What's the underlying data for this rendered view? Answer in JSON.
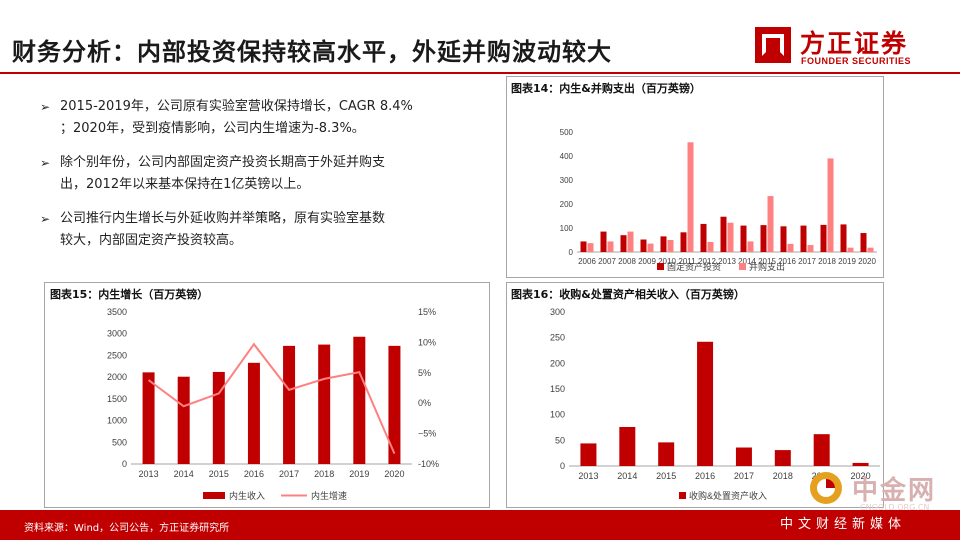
{
  "header": {
    "title": "财务分析：内部投资保持较高水平，外延并购波动较大",
    "brand_cn": "方正证券",
    "brand_en": "FOUNDER SECURITIES",
    "brand_color": "#c00000"
  },
  "bullets": [
    {
      "icon": "arrow-bullet-icon",
      "line1": "2015-2019年，公司原有实验室营收保持增长，CAGR 8.4%",
      "line2": "；2020年，受到疫情影响，公司内生增速为-8.3%。"
    },
    {
      "icon": "arrow-bullet-icon",
      "line1": "除个别年份，公司内部固定资产投资长期高于外延并购支",
      "line2": "出，2012年以来基本保持在1亿英镑以上。"
    },
    {
      "icon": "arrow-bullet-icon",
      "line1": "公司推行内生增长与外延收购并举策略，原有实验室基数",
      "line2": "较大，内部固定资产投资较高。"
    }
  ],
  "colors": {
    "dark_red": "#c00000",
    "light_red": "#ff8080",
    "grid": "#d9d9d9",
    "axis_text": "#404040"
  },
  "footer": {
    "source": "资料来源：Wind，公司公告，方正证券研究所",
    "media": "中文财经新媒体",
    "watermark_name": "中金网",
    "watermark_url": "CNGOLD.ORG.CN"
  },
  "chart_data": [
    {
      "id": "fig14",
      "title": "图表14：内生&并购支出（百万英镑）",
      "type": "bar",
      "categories": [
        "2006",
        "2007",
        "2008",
        "2009",
        "2010",
        "2011",
        "2012",
        "2013",
        "2014",
        "2015",
        "2016",
        "2017",
        "2018",
        "2019",
        "2020"
      ],
      "series": [
        {
          "name": "固定资产投资",
          "color": "#c00000",
          "values": [
            44,
            85,
            70,
            52,
            65,
            82,
            117,
            147,
            110,
            112,
            107,
            110,
            113,
            115,
            79
          ]
        },
        {
          "name": "并购支出",
          "color": "#ff8080",
          "values": [
            37,
            44,
            85,
            35,
            50,
            457,
            42,
            122,
            44,
            233,
            34,
            29,
            390,
            18,
            18
          ]
        }
      ],
      "yticks": [
        0,
        100,
        200,
        300,
        400,
        500
      ],
      "ylim": [
        0,
        500
      ],
      "grid": false,
      "legend": "bottom"
    },
    {
      "id": "fig15",
      "title": "图表15：内生增长（百万英镑）",
      "type": "bar",
      "categories": [
        "2013",
        "2014",
        "2015",
        "2016",
        "2017",
        "2018",
        "2019",
        "2020"
      ],
      "series": [
        {
          "name": "内生收入",
          "type": "bar",
          "axis": "left",
          "color": "#c00000",
          "values": [
            2110,
            2010,
            2120,
            2330,
            2720,
            2750,
            2930,
            2720
          ]
        },
        {
          "name": "内生增速",
          "type": "line",
          "axis": "right",
          "color": "#ff8080",
          "values": [
            3.8,
            -0.5,
            1.6,
            9.7,
            2.2,
            4.0,
            5.1,
            -8.3
          ]
        }
      ],
      "yticks_left": [
        0,
        500,
        1000,
        1500,
        2000,
        2500,
        3000,
        3500
      ],
      "ylim_left": [
        0,
        3500
      ],
      "yticks_right": [
        "-10%",
        "−5%",
        "0%",
        "5%",
        "10%",
        "15%"
      ],
      "ylim_right": [
        -10,
        15
      ],
      "grid": false,
      "legend": "bottom"
    },
    {
      "id": "fig16",
      "title": "图表16：收购&处置资产相关收入（百万英镑）",
      "type": "bar",
      "categories": [
        "2013",
        "2014",
        "2015",
        "2016",
        "2017",
        "2018",
        "2019",
        "2020"
      ],
      "series": [
        {
          "name": "收购&处置资产收入",
          "color": "#c00000",
          "values": [
            44,
            76,
            46,
            242,
            36,
            31,
            62,
            6
          ]
        }
      ],
      "yticks": [
        0,
        50,
        100,
        150,
        200,
        250,
        300
      ],
      "ylim": [
        0,
        300
      ],
      "grid": false,
      "legend": "bottom"
    }
  ]
}
